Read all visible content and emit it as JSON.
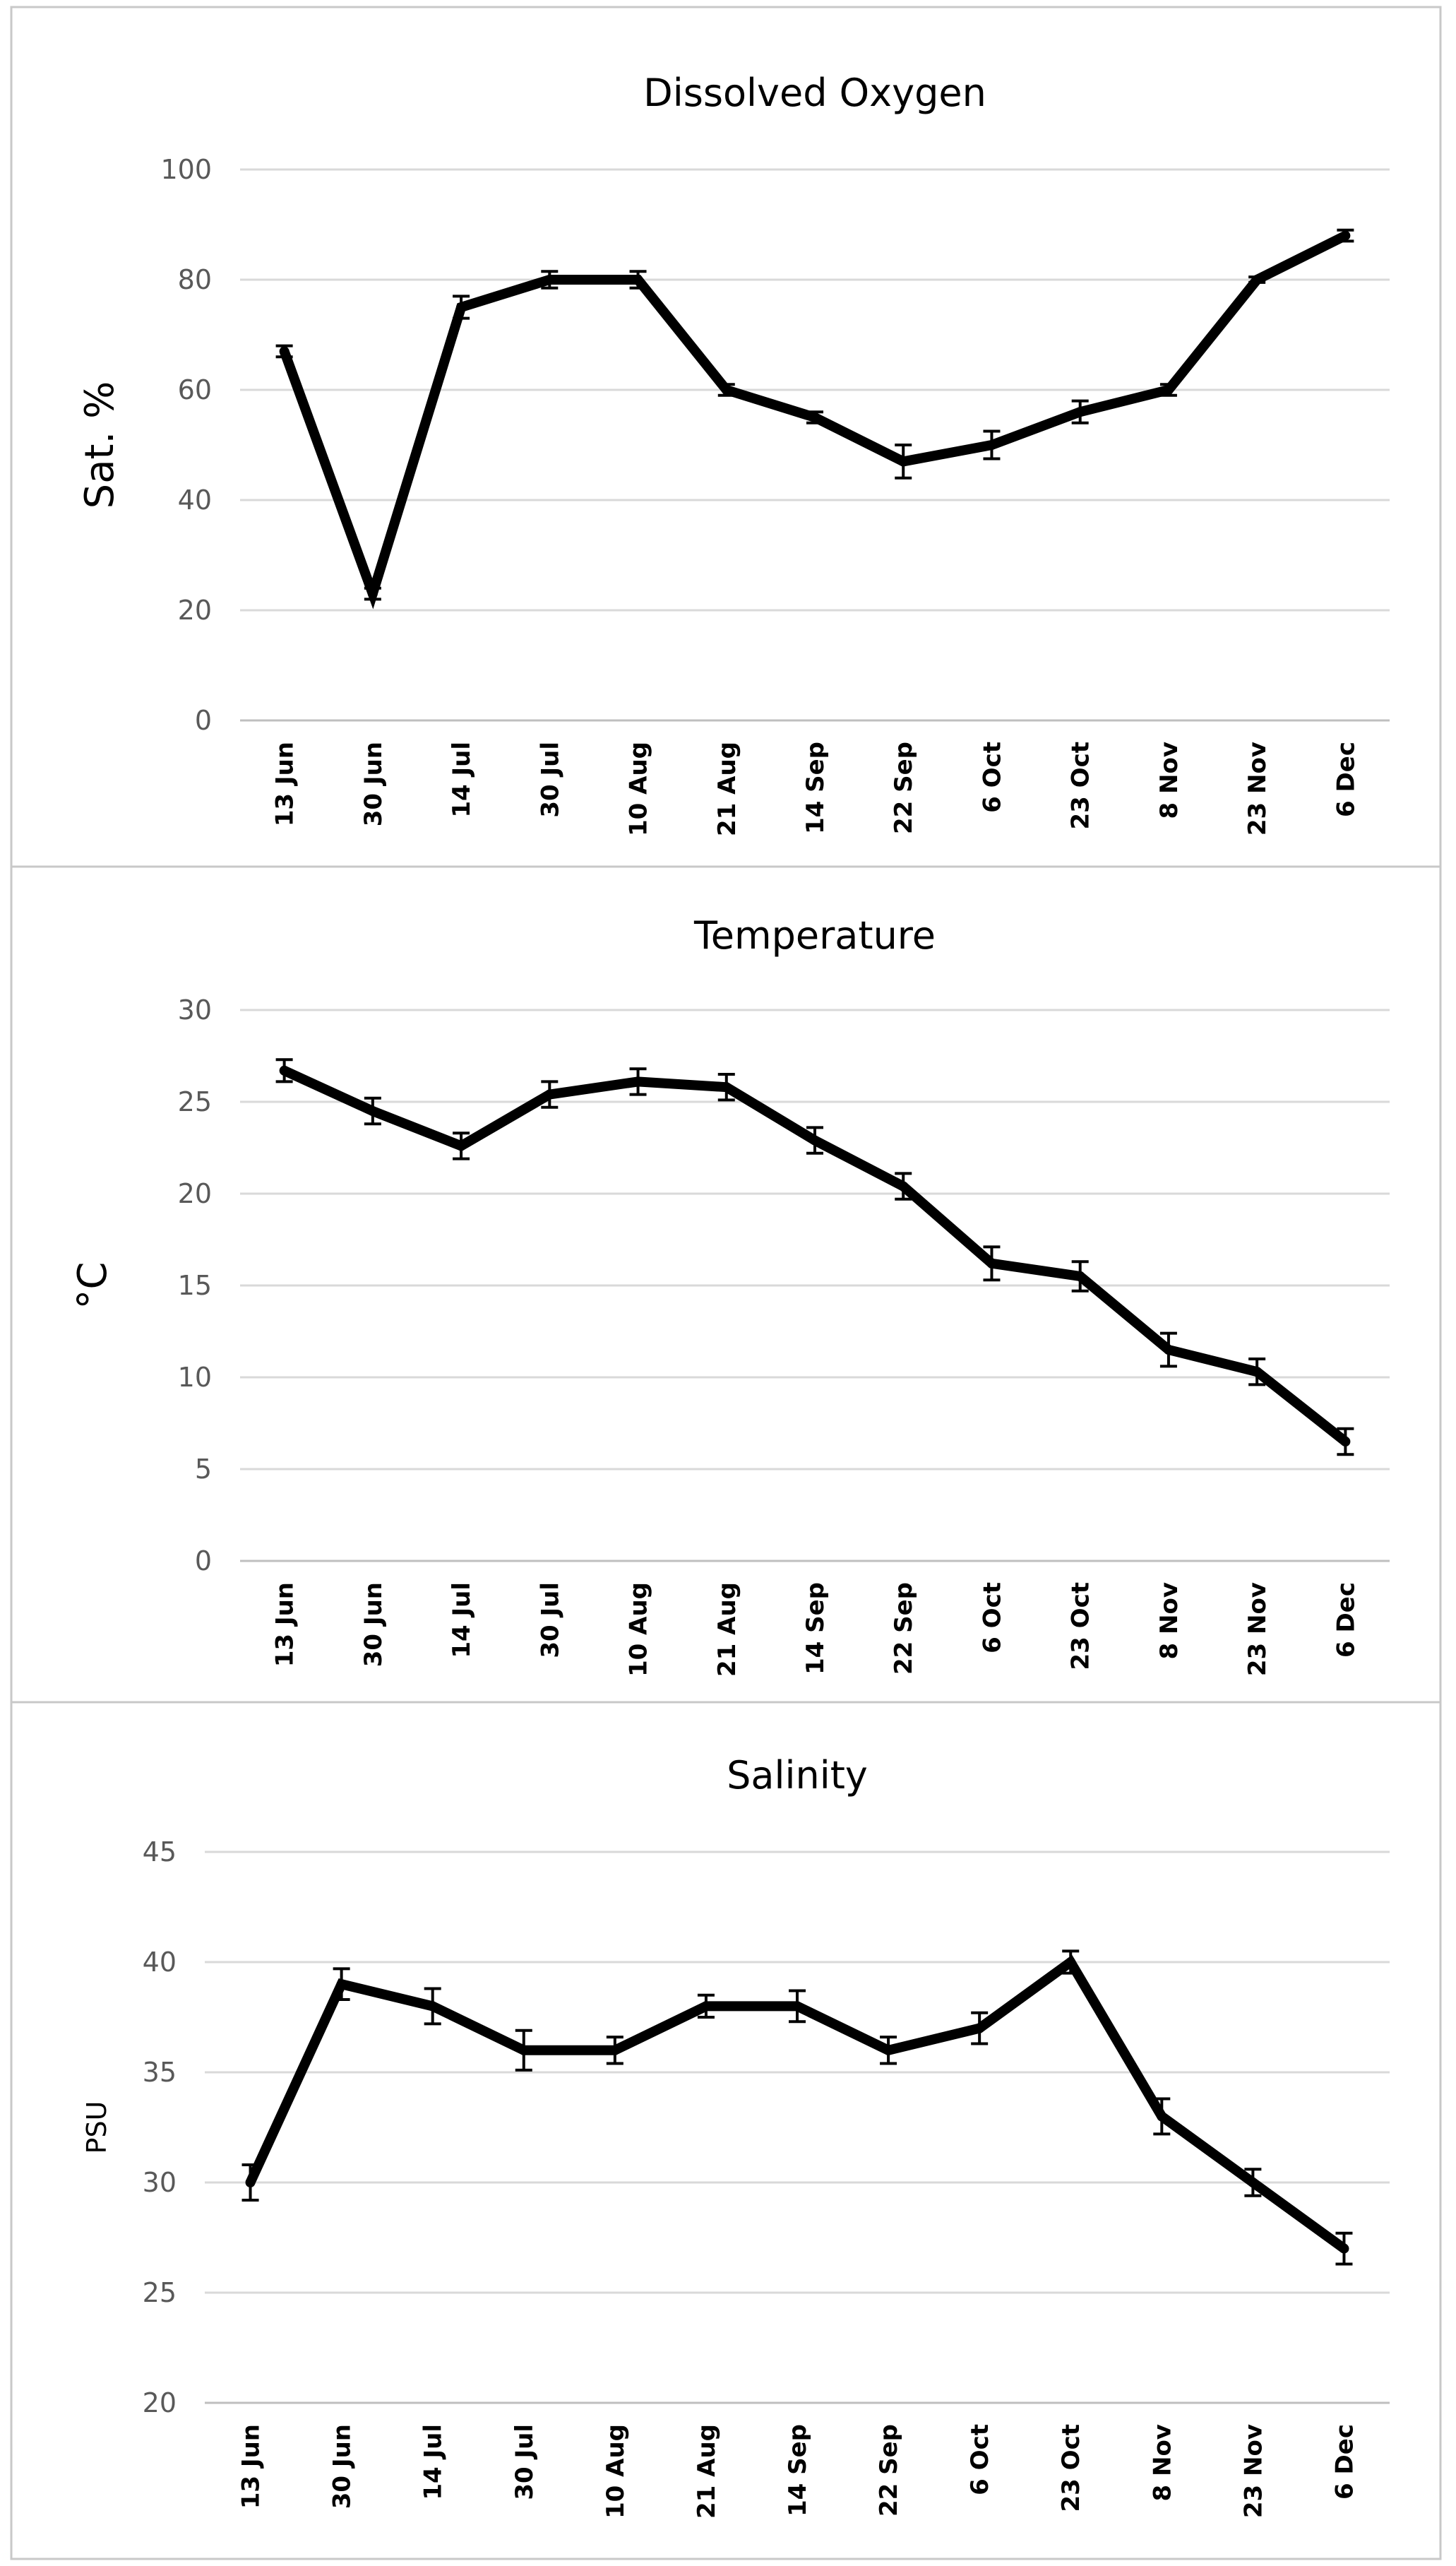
{
  "chart_data": [
    {
      "type": "line",
      "title": "Dissolved Oxygen",
      "xlabel": "",
      "ylabel": "Sat. %",
      "ylim": [
        0,
        100
      ],
      "yticks": [
        0,
        20,
        40,
        60,
        80,
        100
      ],
      "categories": [
        "13 Jun",
        "30 Jun",
        "14 Jul",
        "30 Jul",
        "10 Aug",
        "21 Aug",
        "14 Sep",
        "22 Sep",
        "6 Oct",
        "23 Oct",
        "8 Nov",
        "23 Nov",
        "6 Dec"
      ],
      "series": [
        {
          "name": "Dissolved Oxygen",
          "values": [
            67,
            23,
            75,
            80,
            80,
            60,
            55,
            47,
            50,
            56,
            60,
            80,
            88
          ],
          "error": [
            1,
            1,
            2,
            1.5,
            1.5,
            1,
            1,
            3,
            2.5,
            2,
            1,
            0.5,
            1
          ]
        }
      ],
      "grid": true,
      "legend": "none"
    },
    {
      "type": "line",
      "title": "Temperature",
      "xlabel": "",
      "ylabel": "°C",
      "ylim": [
        0,
        30
      ],
      "yticks": [
        0,
        5,
        10,
        15,
        20,
        25,
        30
      ],
      "categories": [
        "13 Jun",
        "30 Jun",
        "14 Jul",
        "30 Jul",
        "10 Aug",
        "21 Aug",
        "14 Sep",
        "22 Sep",
        "6 Oct",
        "23 Oct",
        "8 Nov",
        "23 Nov",
        "6 Dec"
      ],
      "series": [
        {
          "name": "Temperature",
          "values": [
            26.7,
            24.5,
            22.6,
            25.4,
            26.1,
            25.8,
            22.9,
            20.4,
            16.2,
            15.5,
            11.5,
            10.3,
            6.5
          ],
          "error": [
            0.6,
            0.7,
            0.7,
            0.7,
            0.7,
            0.7,
            0.7,
            0.7,
            0.9,
            0.8,
            0.9,
            0.7,
            0.7
          ]
        }
      ],
      "grid": true,
      "legend": "none"
    },
    {
      "type": "line",
      "title": "Salinity",
      "xlabel": "",
      "ylabel": "PSU",
      "ylim": [
        20,
        45
      ],
      "yticks": [
        20,
        25,
        30,
        35,
        40,
        45
      ],
      "categories": [
        "13 Jun",
        "30 Jun",
        "14 Jul",
        "30 Jul",
        "10 Aug",
        "21 Aug",
        "14 Sep",
        "22 Sep",
        "6 Oct",
        "23 Oct",
        "8 Nov",
        "23 Nov",
        "6 Dec"
      ],
      "series": [
        {
          "name": "Salinity",
          "values": [
            30,
            39,
            38,
            36,
            36,
            38,
            38,
            36,
            37,
            40,
            33,
            30,
            27
          ],
          "error": [
            0.8,
            0.7,
            0.8,
            0.9,
            0.6,
            0.5,
            0.7,
            0.6,
            0.7,
            0.5,
            0.8,
            0.6,
            0.7
          ]
        }
      ],
      "grid": true,
      "legend": "none"
    }
  ]
}
